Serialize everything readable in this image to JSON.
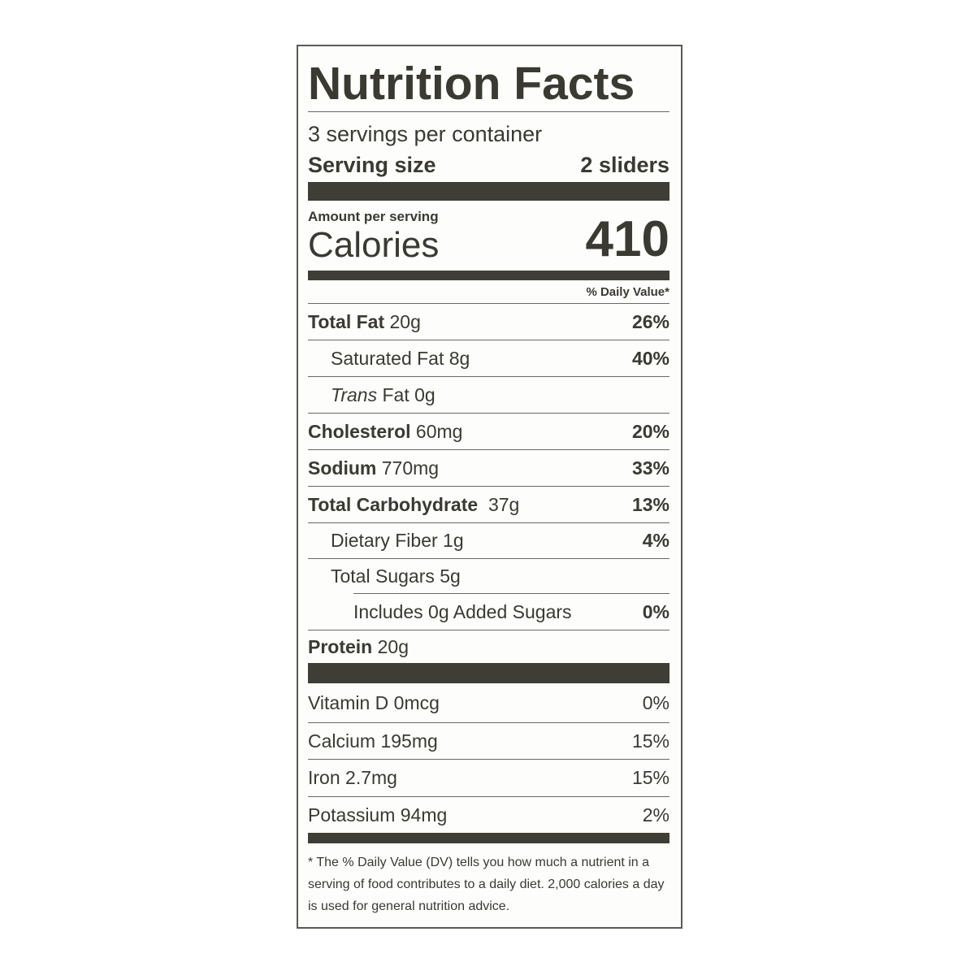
{
  "title": "Nutrition Facts",
  "servings_per_container": "3 servings per container",
  "serving_size": {
    "label": "Serving size",
    "value": "2 sliders"
  },
  "amount_per_serving": "Amount per serving",
  "calories": {
    "label": "Calories",
    "value": "410"
  },
  "dv_header": "% Daily Value*",
  "nutrients": [
    {
      "name": "Total Fat",
      "amount": "20g",
      "dv": "26%"
    },
    {
      "name": "Saturated Fat",
      "amount": "8g",
      "dv": "40%"
    },
    {
      "name": "Trans",
      "name_suffix": "Fat",
      "amount": "0g",
      "dv": ""
    },
    {
      "name": "Cholesterol",
      "amount": "60mg",
      "dv": "20%"
    },
    {
      "name": "Sodium",
      "amount": "770mg",
      "dv": "33%"
    },
    {
      "name": "Total Carbohydrate",
      "amount": "37g",
      "dv": "13%"
    },
    {
      "name": "Dietary Fiber",
      "amount": "1g",
      "dv": "4%"
    },
    {
      "name": "Total Sugars",
      "amount": "5g",
      "dv": ""
    },
    {
      "name": "Includes 0g Added Sugars",
      "amount": "",
      "dv": "0%"
    },
    {
      "name": "Protein",
      "amount": "20g",
      "dv": ""
    }
  ],
  "vitamins": [
    {
      "text": "Vitamin D 0mcg",
      "dv": "0%"
    },
    {
      "text": "Calcium 195mg",
      "dv": "15%"
    },
    {
      "text": "Iron 2.7mg",
      "dv": "15%"
    },
    {
      "text": "Potassium 94mg",
      "dv": "2%"
    }
  ],
  "footnote": "* The % Daily Value (DV) tells you how much a nutrient in a serving of food contributes to a daily diet. 2,000 calories a day is used for general nutrition advice."
}
